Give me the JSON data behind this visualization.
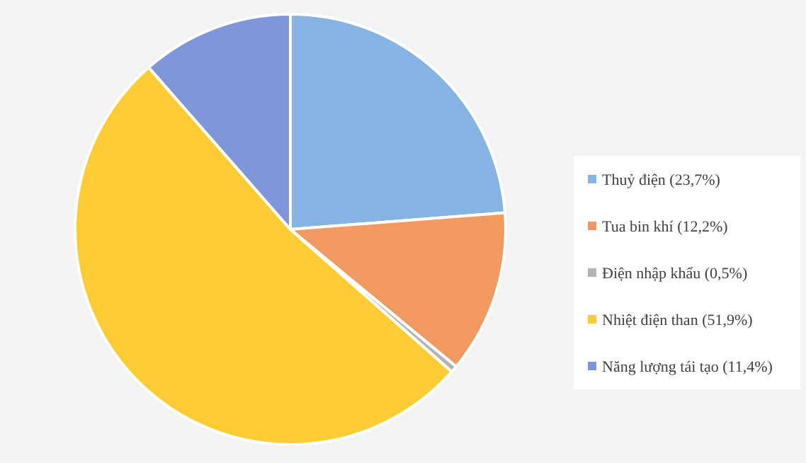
{
  "chart_data": {
    "type": "pie",
    "categories": [
      "Thuỷ điện (23,7%)",
      "Tua bin khí (12,2%)",
      "Điện nhập khẩu (0,5%)",
      "Nhiệt điện than (51,9%)",
      "Năng lượng tái tạo (11,4%)"
    ],
    "values": [
      23.7,
      12.2,
      0.5,
      51.9,
      11.4
    ],
    "colors": [
      "#86b4e2",
      "#f09a62",
      "#b4b4b4",
      "#ffcd33",
      "#7f97d8"
    ],
    "legend": "right"
  }
}
